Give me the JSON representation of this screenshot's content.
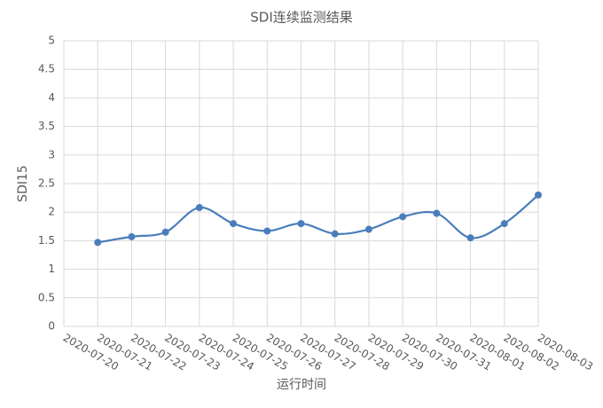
{
  "chart_data": {
    "type": "line",
    "title": "SDI连续监测结果",
    "x_label": "运行时间",
    "y_label": "SDI15",
    "categories": [
      "2020-07-20",
      "2020-07-21",
      "2020-07-22",
      "2020-07-23",
      "2020-07-24",
      "2020-07-25",
      "2020-07-26",
      "2020-07-27",
      "2020-07-28",
      "2020-07-29",
      "2020-07-30",
      "2020-07-31",
      "2020-08-01",
      "2020-08-02",
      "2020-08-03"
    ],
    "series": [
      {
        "name": "SDI15",
        "color": "#4a7ebb",
        "values": [
          null,
          1.47,
          1.57,
          1.65,
          2.08,
          1.8,
          1.67,
          1.8,
          1.62,
          1.7,
          1.92,
          1.98,
          1.55,
          1.8,
          2.3
        ]
      }
    ],
    "ylim": [
      0,
      5
    ],
    "yticks": [
      0,
      0.5,
      1,
      1.5,
      2,
      2.5,
      3,
      3.5,
      4,
      4.5,
      5
    ],
    "grid": true,
    "smooth": true
  }
}
